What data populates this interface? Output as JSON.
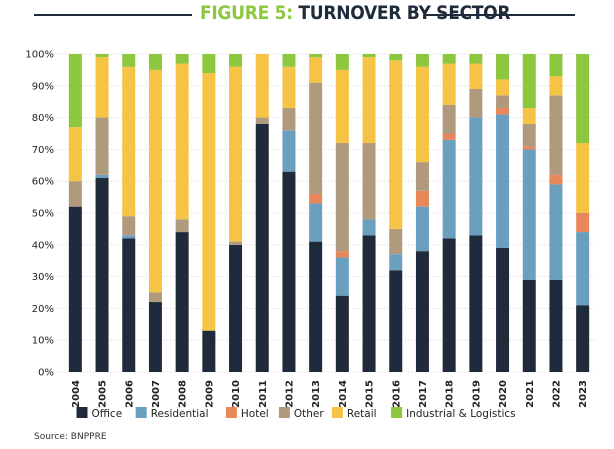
{
  "header": {
    "figure_label": "FIGURE 5:",
    "title": "TURNOVER BY SECTOR"
  },
  "source": "Source: BNPPRE",
  "colors": {
    "Office": "#1f2a3a",
    "Residential": "#6a9fc0",
    "Hotel": "#e8875a",
    "Other": "#b09a7e",
    "Retail": "#f6c444",
    "Industrial & Logistics": "#8dc63f"
  },
  "chart_data": {
    "type": "bar",
    "stacked": true,
    "categories": [
      "2004",
      "2005",
      "2006",
      "2007",
      "2008",
      "2009",
      "2010",
      "2011",
      "2012",
      "2013",
      "2014",
      "2015",
      "2016",
      "2017",
      "2018",
      "2019",
      "2020",
      "2021",
      "2022",
      "2023"
    ],
    "yticks": [
      "0%",
      "10%",
      "20%",
      "30%",
      "40%",
      "50%",
      "60%",
      "70%",
      "80%",
      "90%",
      "100%"
    ],
    "ylim": [
      0,
      100
    ],
    "legend_position": "bottom",
    "series": [
      {
        "name": "Office",
        "values": [
          52,
          61,
          42,
          22,
          44,
          13,
          40,
          78,
          63,
          41,
          24,
          43,
          32,
          38,
          42,
          43,
          39,
          29,
          29,
          21
        ]
      },
      {
        "name": "Residential",
        "values": [
          0,
          1,
          1,
          0,
          0,
          0,
          0,
          0,
          13,
          12,
          12,
          5,
          5,
          14,
          31,
          37,
          42,
          41,
          30,
          23
        ]
      },
      {
        "name": "Hotel",
        "values": [
          0,
          0,
          0,
          0,
          0,
          0,
          0,
          0,
          0,
          3,
          2,
          0,
          0,
          5,
          2,
          0,
          2,
          1,
          3,
          6
        ]
      },
      {
        "name": "Other",
        "values": [
          8,
          18,
          6,
          3,
          4,
          0,
          1,
          2,
          7,
          35,
          34,
          24,
          8,
          9,
          9,
          9,
          4,
          7,
          25,
          0
        ]
      },
      {
        "name": "Retail",
        "values": [
          17,
          19,
          47,
          70,
          49,
          81,
          55,
          20,
          13,
          8,
          23,
          27,
          53,
          30,
          13,
          8,
          5,
          5,
          6,
          22
        ]
      },
      {
        "name": "Industrial & Logistics",
        "values": [
          23,
          1,
          4,
          5,
          3,
          6,
          4,
          0,
          4,
          1,
          5,
          1,
          2,
          4,
          3,
          3,
          8,
          17,
          7,
          28
        ]
      }
    ]
  }
}
